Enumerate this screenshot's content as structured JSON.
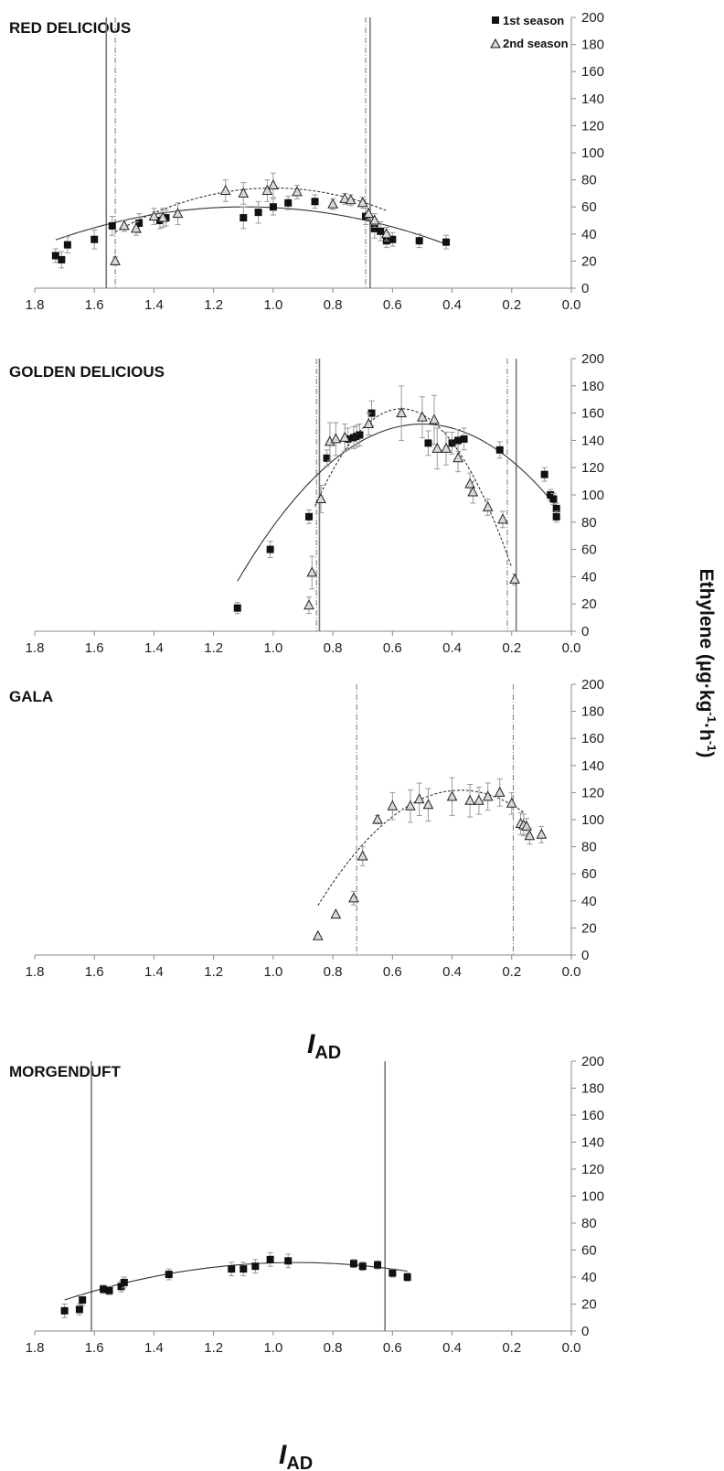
{
  "figure": {
    "y_axis_label": "Ethylene (µg·kg⁻¹·h⁻¹)",
    "y_axis_label_parts": [
      "Ethylene (µg·kg",
      "-1",
      "·h",
      "-1",
      ")"
    ],
    "x_axis_label_main": "I",
    "x_axis_label_sub": "AD",
    "legend": [
      {
        "symbol": "filled-square",
        "label": "1st season"
      },
      {
        "symbol": "open-triangle",
        "label": "2nd season"
      }
    ],
    "colors": {
      "axis": "#888888",
      "marker": "#111111",
      "triangle_fill": "#d9d9d9",
      "refline": "#777777"
    }
  },
  "chart_data": [
    {
      "type": "scatter",
      "title": "RED DELICIOUS",
      "xlim": [
        1.8,
        0.0
      ],
      "ylim": [
        0,
        200
      ],
      "x_ticks": [
        "1.8",
        "1.6",
        "1.4",
        "1.2",
        "1.0",
        "0.8",
        "0.6",
        "0.4",
        "0.2",
        "0.0"
      ],
      "y_ticks": [
        "0",
        "20",
        "40",
        "60",
        "80",
        "100",
        "120",
        "140",
        "160",
        "180",
        "200"
      ],
      "legend": true,
      "reference_lines": [
        {
          "x": 1.56,
          "style": "solid"
        },
        {
          "x": 1.53,
          "style": "dashdot"
        },
        {
          "x": 0.69,
          "style": "dashdot"
        },
        {
          "x": 0.675,
          "style": "solid"
        }
      ],
      "series": [
        {
          "name": "1st season",
          "marker": "square",
          "fit": "solid",
          "fit_poly": [
            -60.5,
            132.5,
            -12.5
          ],
          "fit_range": [
            1.73,
            0.42
          ],
          "x": [
            1.73,
            1.71,
            1.69,
            1.6,
            1.54,
            1.45,
            1.38,
            1.36,
            1.1,
            1.05,
            1.0,
            0.95,
            0.86,
            0.69,
            0.66,
            0.64,
            0.62,
            0.6,
            0.51,
            0.42
          ],
          "y": [
            24,
            21,
            32,
            36,
            46,
            48,
            50,
            52,
            52,
            56,
            60,
            63,
            64,
            53,
            44,
            42,
            35,
            36,
            35,
            34
          ],
          "err": [
            5,
            6,
            6,
            7,
            7,
            7,
            6,
            6,
            8,
            8,
            6,
            5,
            5,
            6,
            7,
            7,
            5,
            5,
            5,
            5
          ]
        },
        {
          "name": "2nd season",
          "marker": "triangle",
          "fit": "dotted",
          "fit_poly": [
            -115.6,
            231.2,
            -41.6
          ],
          "fit_range": [
            1.53,
            0.62
          ],
          "x": [
            1.53,
            1.5,
            1.46,
            1.4,
            1.37,
            1.32,
            1.16,
            1.1,
            1.02,
            1.0,
            0.92,
            0.8,
            0.76,
            0.74,
            0.7,
            0.68,
            0.66,
            0.62
          ],
          "y": [
            20,
            46,
            44,
            53,
            52,
            55,
            72,
            70,
            72,
            76,
            71,
            62,
            66,
            65,
            63,
            55,
            50,
            40
          ],
          "err": [
            3,
            4,
            5,
            6,
            7,
            8,
            8,
            8,
            8,
            9,
            5,
            4,
            4,
            4,
            4,
            4,
            5,
            5
          ]
        }
      ]
    },
    {
      "type": "scatter",
      "title": "GOLDEN DELICIOUS",
      "xlim": [
        1.8,
        0.0
      ],
      "ylim": [
        0,
        200
      ],
      "x_ticks": [
        "1.8",
        "1.6",
        "1.4",
        "1.2",
        "1.0",
        "0.8",
        "0.6",
        "0.4",
        "0.2",
        "0.0"
      ],
      "y_ticks": [
        "0",
        "20",
        "40",
        "60",
        "80",
        "100",
        "120",
        "140",
        "160",
        "180",
        "200"
      ],
      "legend": false,
      "reference_lines": [
        {
          "x": 0.855,
          "style": "dashdot"
        },
        {
          "x": 0.845,
          "style": "solid"
        },
        {
          "x": 0.215,
          "style": "dashdot"
        },
        {
          "x": 0.185,
          "style": "solid"
        }
      ],
      "series": [
        {
          "name": "1st season",
          "marker": "square",
          "fit": "solid",
          "fit_poly": [
            -300,
            300,
            77
          ],
          "fit_range": [
            1.12,
            0.05
          ],
          "x": [
            1.12,
            1.01,
            0.88,
            0.82,
            0.75,
            0.73,
            0.72,
            0.71,
            0.67,
            0.48,
            0.4,
            0.38,
            0.36,
            0.24,
            0.09,
            0.07,
            0.06,
            0.05,
            0.05
          ],
          "y": [
            17,
            60,
            84,
            127,
            141,
            142,
            143,
            144,
            160,
            138,
            138,
            140,
            141,
            133,
            115,
            100,
            97,
            90,
            84
          ],
          "err": [
            4,
            6,
            5,
            6,
            8,
            8,
            8,
            8,
            9,
            9,
            8,
            8,
            8,
            6,
            5,
            4,
            4,
            4,
            4
          ]
        },
        {
          "name": "2nd season",
          "marker": "triangle",
          "fit": "dotted",
          "fit_poly": [
            -850,
            969,
            -113
          ],
          "fit_range": [
            0.86,
            0.2
          ],
          "x": [
            0.88,
            0.87,
            0.84,
            0.81,
            0.79,
            0.76,
            0.68,
            0.57,
            0.5,
            0.46,
            0.45,
            0.42,
            0.38,
            0.34,
            0.33,
            0.28,
            0.23,
            0.19
          ],
          "y": [
            19,
            43,
            97,
            139,
            141,
            142,
            152,
            160,
            157,
            155,
            134,
            134,
            127,
            108,
            102,
            91,
            82,
            38
          ],
          "err": [
            6,
            12,
            10,
            14,
            12,
            10,
            8,
            20,
            15,
            18,
            15,
            12,
            10,
            8,
            8,
            6,
            6,
            4
          ]
        }
      ]
    },
    {
      "type": "scatter",
      "title": "GALA",
      "xlim": [
        1.8,
        0.0
      ],
      "ylim": [
        0,
        200
      ],
      "x_ticks": [
        "1.8",
        "1.6",
        "1.4",
        "1.2",
        "1.0",
        "0.8",
        "0.6",
        "0.4",
        "0.2",
        "0.0"
      ],
      "y_ticks": [
        "0",
        "20",
        "40",
        "60",
        "80",
        "100",
        "120",
        "140",
        "160",
        "180",
        "200"
      ],
      "legend": false,
      "reference_lines": [
        {
          "x": 0.72,
          "style": "dashdot"
        },
        {
          "x": 0.195,
          "style": "dashdot"
        }
      ],
      "series": [
        {
          "name": "2nd season",
          "marker": "triangle",
          "fit": "dotted",
          "fit_poly": [
            -370,
            274,
            71
          ],
          "fit_range": [
            0.85,
            0.16
          ],
          "x": [
            0.85,
            0.79,
            0.73,
            0.7,
            0.65,
            0.6,
            0.54,
            0.51,
            0.48,
            0.4,
            0.34,
            0.31,
            0.28,
            0.24,
            0.2,
            0.17,
            0.16,
            0.15,
            0.14,
            0.1
          ],
          "y": [
            14,
            30,
            42,
            73,
            100,
            110,
            110,
            115,
            111,
            117,
            114,
            114,
            117,
            120,
            112,
            97,
            96,
            95,
            88,
            89
          ],
          "err": [
            0,
            0,
            5,
            7,
            3,
            10,
            12,
            12,
            12,
            14,
            12,
            10,
            10,
            10,
            8,
            8,
            8,
            6,
            6,
            6
          ]
        }
      ]
    },
    {
      "type": "scatter",
      "title": "MORGENDUFT",
      "xlim": [
        1.8,
        0.0
      ],
      "ylim": [
        0,
        200
      ],
      "x_ticks": [
        "1.8",
        "1.6",
        "1.4",
        "1.2",
        "1.0",
        "0.8",
        "0.6",
        "0.4",
        "0.2",
        "0.0"
      ],
      "y_ticks": [
        "0",
        "20",
        "40",
        "60",
        "80",
        "100",
        "120",
        "140",
        "160",
        "180",
        "200"
      ],
      "legend": false,
      "reference_lines": [
        {
          "x": 1.61,
          "style": "solid"
        },
        {
          "x": 0.625,
          "style": "solid"
        }
      ],
      "series": [
        {
          "name": "1st season",
          "marker": "square",
          "fit": "solid",
          "fit_poly": [
            -46,
            85,
            11.5
          ],
          "fit_range": [
            1.7,
            0.55
          ],
          "x": [
            1.7,
            1.65,
            1.64,
            1.57,
            1.55,
            1.51,
            1.5,
            1.35,
            1.14,
            1.1,
            1.06,
            1.01,
            0.95,
            0.73,
            0.7,
            0.65,
            0.6,
            0.55
          ],
          "y": [
            15,
            16,
            23,
            31,
            30,
            33,
            36,
            42,
            46,
            46,
            48,
            53,
            52,
            50,
            48,
            49,
            43,
            40
          ],
          "err": [
            5,
            4,
            4,
            3,
            3,
            4,
            4,
            4,
            5,
            5,
            5,
            5,
            5,
            3,
            3,
            3,
            3,
            3
          ]
        }
      ]
    }
  ]
}
